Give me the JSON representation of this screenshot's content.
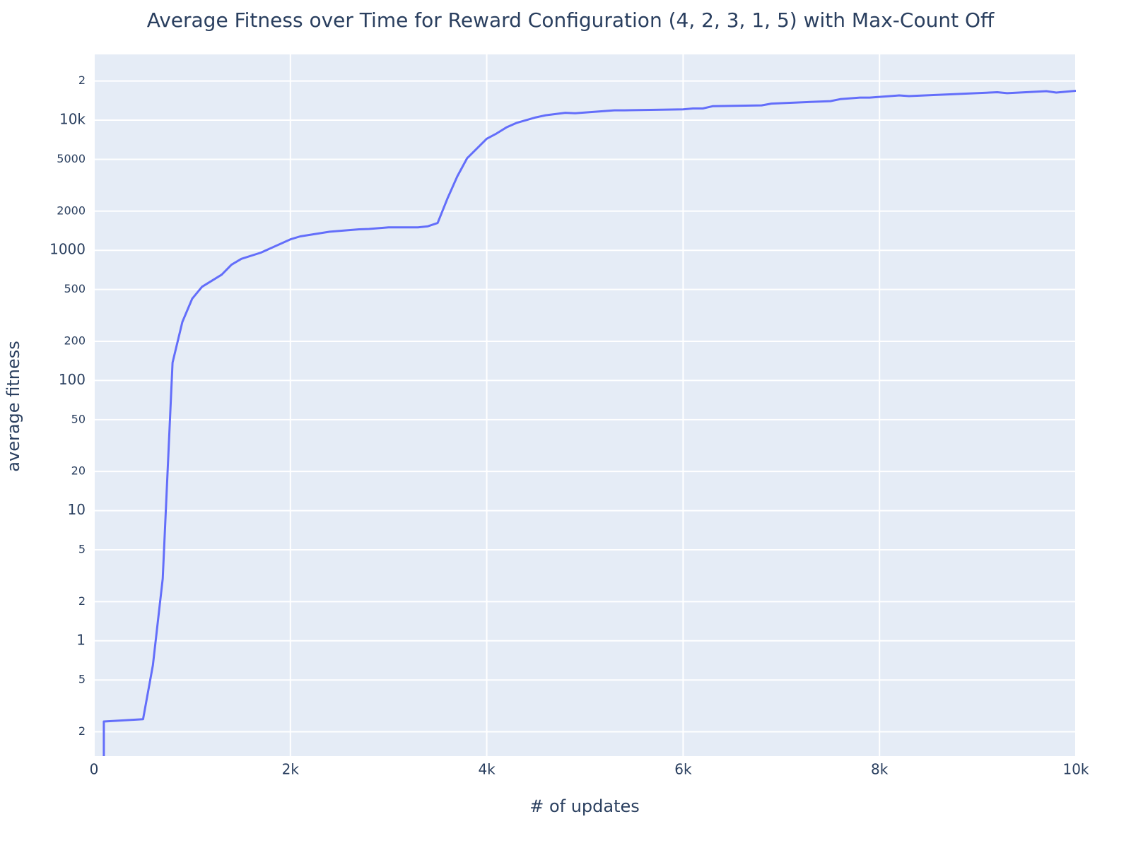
{
  "chart_data": {
    "type": "line",
    "title": "Average Fitness over Time for Reward Configuration (4, 2, 3, 1, 5) with Max-Count Off",
    "xlabel": "# of updates",
    "ylabel": "average fitness",
    "log_y": true,
    "grid": true,
    "x": [
      100,
      100,
      500,
      600,
      700,
      800,
      900,
      1000,
      1100,
      1300,
      1400,
      1500,
      1700,
      2000,
      2100,
      2400,
      2700,
      2800,
      3000,
      3300,
      3400,
      3500,
      3600,
      3700,
      3800,
      4000,
      4100,
      4200,
      4300,
      4500,
      4600,
      4800,
      4900,
      5300,
      5400,
      6000,
      6100,
      6200,
      6300,
      6800,
      6900,
      7500,
      7600,
      7800,
      7900,
      8200,
      8300,
      9200,
      9300,
      9700,
      9800,
      10000
    ],
    "series": [
      {
        "name": "average fitness",
        "color": "#636efa",
        "values": [
          0.05,
          0.24,
          0.25,
          0.65,
          3.0,
          137,
          282,
          425,
          525,
          650,
          775,
          860,
          960,
          1215,
          1280,
          1390,
          1450,
          1460,
          1500,
          1500,
          1530,
          1620,
          2500,
          3700,
          5100,
          7200,
          7900,
          8800,
          9500,
          10500,
          10900,
          11400,
          11300,
          11900,
          11900,
          12100,
          12300,
          12300,
          12800,
          13000,
          13400,
          14000,
          14500,
          14900,
          14900,
          15500,
          15300,
          16400,
          16100,
          16700,
          16300,
          16800
        ]
      }
    ],
    "xlim": [
      0,
      10000
    ],
    "xticks": [
      0,
      {
        "value": 2000,
        "label": "2k"
      },
      {
        "value": 4000,
        "label": "4k"
      },
      {
        "value": 6000,
        "label": "6k"
      },
      {
        "value": 8000,
        "label": "8k"
      },
      {
        "value": 10000,
        "label": "10k"
      }
    ],
    "ylim": [
      0.13,
      32000
    ],
    "yticks": [
      {
        "value": 0.2,
        "label": "2"
      },
      {
        "value": 0.5,
        "label": "5"
      },
      1,
      2,
      5,
      10,
      20,
      50,
      100,
      200,
      500,
      1000,
      2000,
      5000,
      {
        "value": 10000,
        "label": "10k"
      },
      {
        "value": 20000,
        "label": "2"
      }
    ]
  }
}
